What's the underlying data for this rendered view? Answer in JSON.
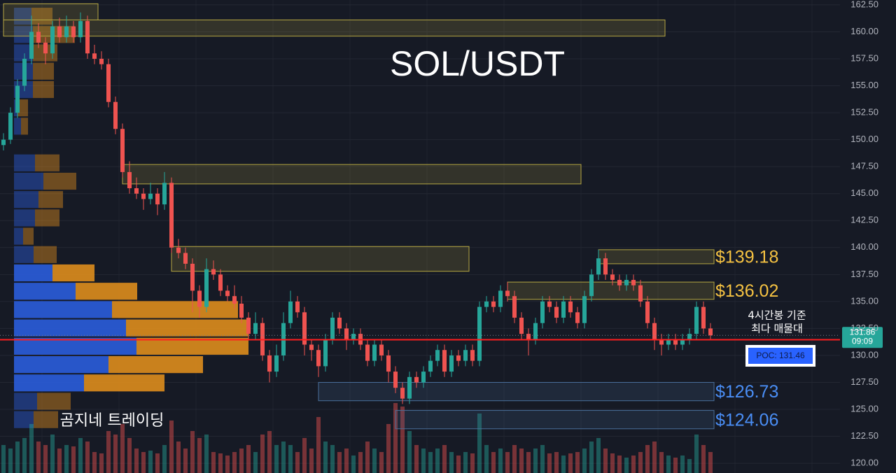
{
  "chart_data": {
    "type": "candlestick",
    "title": "SOL/USDT",
    "watermark": "곰지네 트레이딩",
    "ylim": [
      119.1,
      162.95
    ],
    "yticks": [
      {
        "value": 120,
        "label": "120.00"
      },
      {
        "value": 122.5,
        "label": "122.50"
      },
      {
        "value": 125,
        "label": "125.00"
      },
      {
        "value": 127.5,
        "label": "127.50"
      },
      {
        "value": 130,
        "label": "130.00"
      },
      {
        "value": 132.5,
        "label": "132.50"
      },
      {
        "value": 135,
        "label": "135.00"
      },
      {
        "value": 137.5,
        "label": "137.50"
      },
      {
        "value": 140,
        "label": "140.00"
      },
      {
        "value": 142.5,
        "label": "142.50"
      },
      {
        "value": 145,
        "label": "145.00"
      },
      {
        "value": 147.5,
        "label": "147.50"
      },
      {
        "value": 150,
        "label": "150.00"
      },
      {
        "value": 152.5,
        "label": "152.50"
      },
      {
        "value": 155,
        "label": "155.00"
      },
      {
        "value": 157.5,
        "label": "157.50"
      },
      {
        "value": 160,
        "label": "160.00"
      },
      {
        "value": 162.5,
        "label": "162.50"
      }
    ],
    "grid": true,
    "up_color": "#26a69a",
    "down_color": "#ef5350",
    "candles": [
      [
        149.5,
        150.6,
        149,
        150
      ],
      [
        150,
        153,
        149.6,
        152.5
      ],
      [
        152.5,
        155.6,
        152,
        155
      ],
      [
        155,
        158,
        154.5,
        157.5
      ],
      [
        157.5,
        161.5,
        157,
        160
      ],
      [
        160,
        160.8,
        158.5,
        159
      ],
      [
        159,
        159.5,
        157,
        158
      ],
      [
        158,
        161,
        157.5,
        160.5
      ],
      [
        160.5,
        161.3,
        159,
        159.5
      ],
      [
        159.5,
        161.5,
        159,
        160.5
      ],
      [
        160.5,
        161,
        159,
        159.5
      ],
      [
        159.5,
        161.8,
        159,
        161
      ],
      [
        161,
        161.5,
        157.5,
        158
      ],
      [
        158,
        158.8,
        157,
        157.5
      ],
      [
        157.5,
        158.2,
        156.5,
        157
      ],
      [
        157,
        157.5,
        153,
        153.5
      ],
      [
        153.5,
        154,
        150.5,
        151
      ],
      [
        151,
        151.5,
        146.5,
        147
      ],
      [
        147,
        148,
        145,
        145.5
      ],
      [
        145.5,
        146.5,
        144.5,
        145
      ],
      [
        145,
        145.5,
        143.5,
        144.5
      ],
      [
        144.5,
        146,
        144,
        145
      ],
      [
        145,
        145.5,
        143,
        144
      ],
      [
        144,
        147,
        143.5,
        146
      ],
      [
        146,
        146.5,
        139.5,
        140
      ],
      [
        140,
        140.8,
        139,
        139.5
      ],
      [
        139.5,
        140,
        138,
        138.5
      ],
      [
        138.5,
        139,
        134,
        136
      ],
      [
        136,
        136.5,
        133.5,
        134.5
      ],
      [
        134.5,
        139,
        134,
        138
      ],
      [
        138,
        138.8,
        137,
        137.5
      ],
      [
        137.5,
        138,
        135.5,
        136
      ],
      [
        136,
        136.5,
        135,
        135.5
      ],
      [
        135.5,
        136.5,
        134.3,
        134.8
      ],
      [
        134.8,
        135.5,
        133,
        133.5
      ],
      [
        133.5,
        134,
        131.5,
        132
      ],
      [
        132,
        134,
        131.5,
        133
      ],
      [
        133,
        133.5,
        129.5,
        130
      ],
      [
        130,
        130.5,
        127.5,
        128.5
      ],
      [
        128.5,
        131,
        128,
        130
      ],
      [
        130,
        134,
        129.5,
        133
      ],
      [
        133,
        136,
        132.5,
        135
      ],
      [
        135,
        135.5,
        133.5,
        134
      ],
      [
        134,
        134.5,
        130,
        131
      ],
      [
        131,
        131.5,
        129.5,
        130.5
      ],
      [
        130.5,
        131,
        128,
        129
      ],
      [
        129,
        132,
        128.5,
        131.5
      ],
      [
        131.5,
        134,
        131,
        133.5
      ],
      [
        133.5,
        134,
        132,
        132.5
      ],
      [
        132.5,
        133,
        130.5,
        131.5
      ],
      [
        131.5,
        132.5,
        131,
        132
      ],
      [
        132,
        132.5,
        130.5,
        131
      ],
      [
        131,
        131.5,
        129,
        129.5
      ],
      [
        129.5,
        131.5,
        129,
        131
      ],
      [
        131,
        131.5,
        129.5,
        130
      ],
      [
        130,
        130.5,
        127.5,
        128.5
      ],
      [
        128.5,
        129,
        126.5,
        127
      ],
      [
        127,
        127.5,
        125.5,
        126
      ],
      [
        126,
        128.5,
        125.5,
        128
      ],
      [
        128,
        128.5,
        127,
        127.5
      ],
      [
        127.5,
        129,
        127,
        128.5
      ],
      [
        128.5,
        130,
        128,
        129.5
      ],
      [
        129.5,
        131,
        129,
        130.5
      ],
      [
        130.5,
        131,
        128,
        128.5
      ],
      [
        128.5,
        130.5,
        128,
        130
      ],
      [
        130,
        130.5,
        129,
        129.5
      ],
      [
        129.5,
        131,
        129,
        130.5
      ],
      [
        130.5,
        131,
        129,
        129.5
      ],
      [
        129.5,
        135,
        129,
        134.5
      ],
      [
        134.5,
        135.5,
        134,
        135
      ],
      [
        135,
        135.5,
        134,
        134.5
      ],
      [
        134.5,
        136.5,
        134,
        136
      ],
      [
        136,
        136.8,
        135,
        135.5
      ],
      [
        135.5,
        136,
        133,
        133.5
      ],
      [
        133.5,
        134,
        131.5,
        132
      ],
      [
        132,
        132.5,
        130,
        131.5
      ],
      [
        131.5,
        133.5,
        131,
        133
      ],
      [
        133,
        135.5,
        132.5,
        135
      ],
      [
        135,
        135.5,
        134,
        134.5
      ],
      [
        134.5,
        135,
        133,
        133.5
      ],
      [
        133.5,
        135.5,
        133,
        135
      ],
      [
        135,
        135.5,
        133.5,
        134
      ],
      [
        134,
        134.5,
        132.5,
        133
      ],
      [
        133,
        136,
        132.5,
        135.5
      ],
      [
        135.5,
        138,
        135,
        137.5
      ],
      [
        137.5,
        139.8,
        137,
        139
      ],
      [
        139,
        139.5,
        137,
        137.5
      ],
      [
        137.5,
        138,
        136.5,
        137
      ],
      [
        137,
        137.5,
        136,
        136.5
      ],
      [
        136.5,
        137.5,
        136,
        137
      ],
      [
        137,
        137.5,
        136,
        136.5
      ],
      [
        136.5,
        137,
        134.5,
        135
      ],
      [
        135,
        135.5,
        132.5,
        133
      ],
      [
        133,
        133.5,
        130.5,
        131.5
      ],
      [
        131.5,
        132,
        130,
        131
      ],
      [
        131,
        132,
        130.5,
        131.5
      ],
      [
        131.5,
        132,
        130.5,
        131
      ],
      [
        131,
        132,
        130.5,
        131.5
      ],
      [
        131.5,
        132.5,
        131,
        132
      ],
      [
        132,
        135,
        131.5,
        134.5
      ],
      [
        134.5,
        135,
        132,
        132.5
      ],
      [
        132.5,
        133,
        131.5,
        131.86
      ]
    ],
    "volume": [
      40,
      35,
      45,
      50,
      70,
      45,
      40,
      55,
      35,
      40,
      38,
      50,
      45,
      30,
      28,
      60,
      55,
      70,
      50,
      35,
      30,
      32,
      28,
      40,
      75,
      45,
      35,
      60,
      50,
      55,
      30,
      28,
      25,
      30,
      35,
      40,
      30,
      55,
      60,
      40,
      45,
      40,
      30,
      50,
      35,
      80,
      45,
      40,
      30,
      35,
      25,
      30,
      45,
      35,
      30,
      70,
      100,
      95,
      60,
      40,
      35,
      30,
      35,
      40,
      30,
      25,
      30,
      28,
      85,
      40,
      30,
      35,
      30,
      40,
      35,
      30,
      35,
      40,
      28,
      30,
      25,
      28,
      30,
      35,
      45,
      50,
      35,
      28,
      25,
      22,
      25,
      30,
      40,
      45,
      30,
      25,
      22,
      25,
      20,
      55,
      40,
      30
    ],
    "volume_profile": {
      "bins": [
        123.2,
        124.9,
        126.6,
        128.3,
        130.0,
        131.7,
        133.4,
        135.1,
        136.8,
        138.5,
        140.2,
        141.9,
        143.6,
        145.3,
        147.0,
        148.7,
        150.4,
        152.1,
        153.8,
        155.5,
        157.2,
        158.9,
        160.6,
        162.3
      ],
      "buy": [
        28,
        33,
        100,
        135,
        175,
        160,
        140,
        88,
        55,
        28,
        13,
        30,
        35,
        42,
        30,
        0,
        10,
        5,
        27,
        27,
        27,
        27,
        25
      ],
      "sell": [
        35,
        48,
        115,
        135,
        160,
        175,
        180,
        88,
        60,
        33,
        15,
        35,
        35,
        47,
        35,
        0,
        10,
        15,
        30,
        30,
        35,
        60,
        30
      ]
    },
    "zones": [
      {
        "top": 162.6,
        "bottom": 161.1,
        "from": 0,
        "to": 13,
        "color": "#b5a642"
      },
      {
        "top": 161.1,
        "bottom": 159.6,
        "from": 0,
        "to": 94,
        "color": "#b5a642"
      },
      {
        "top": 147.7,
        "bottom": 145.9,
        "from": 17,
        "to": 82,
        "color": "#b5a642"
      },
      {
        "top": 140.1,
        "bottom": 137.8,
        "from": 24,
        "to": 66,
        "color": "#b5a642"
      },
      {
        "top": 139.8,
        "bottom": 138.5,
        "from": 85,
        "to": 101,
        "color": "#b5a642",
        "label": "$139.18",
        "label_color": "#f5c242"
      },
      {
        "top": 136.8,
        "bottom": 135.2,
        "from": 72,
        "to": 101,
        "color": "#b5a642",
        "label": "$136.02",
        "label_color": "#f5c242"
      },
      {
        "top": 127.5,
        "bottom": 125.8,
        "from": 45,
        "to": 101,
        "color": "#4a6f9a",
        "label": "$126.73",
        "label_color": "#4a8ef5"
      },
      {
        "top": 124.9,
        "bottom": 123.2,
        "from": 56,
        "to": 101,
        "color": "#4a6f9a",
        "label": "$124.06",
        "label_color": "#4a8ef5"
      }
    ],
    "current_price": {
      "value": 131.86,
      "countdown": "09:09"
    },
    "poc": {
      "value": 131.46,
      "label": "POC: 131.46",
      "note": [
        "4시간봉 기준",
        "최다 매물대"
      ]
    }
  }
}
